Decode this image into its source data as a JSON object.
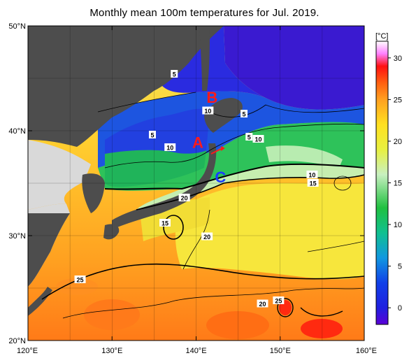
{
  "title": "Monthly mean 100m temperatures for Jul. 2019.",
  "map": {
    "lon_range": [
      120,
      160
    ],
    "lat_range": [
      20,
      50
    ],
    "lon_ticks": [
      {
        "value": 120,
        "label": "120°E"
      },
      {
        "value": 130,
        "label": "130°E"
      },
      {
        "value": 140,
        "label": "140°E"
      },
      {
        "value": 150,
        "label": "150°E"
      },
      {
        "value": 160,
        "label": "160°E"
      }
    ],
    "lat_ticks": [
      {
        "value": 50,
        "label": "50°N"
      },
      {
        "value": 40,
        "label": "40°N"
      },
      {
        "value": 30,
        "label": "30°N"
      },
      {
        "value": 20,
        "label": "20°N"
      }
    ],
    "grid_spacing_deg": 5,
    "land_color": "#4d4d4d",
    "nodata_color": "#d9d9d9",
    "point_labels": [
      {
        "id": "A",
        "text": "A",
        "lon": 140.2,
        "lat": 38.9,
        "color": "#ff1a1a"
      },
      {
        "id": "B",
        "text": "B",
        "lon": 141.9,
        "lat": 43.2,
        "color": "#ff1a1a"
      },
      {
        "id": "C",
        "text": "C",
        "lon": 142.9,
        "lat": 35.6,
        "color": "#1a3cff"
      }
    ],
    "contour_labels": [
      {
        "text": "5",
        "lon": 137.4,
        "lat": 45.4
      },
      {
        "text": "10",
        "lon": 141.4,
        "lat": 41.9
      },
      {
        "text": "5",
        "lon": 145.7,
        "lat": 41.6
      },
      {
        "text": "5",
        "lon": 134.8,
        "lat": 39.6
      },
      {
        "text": "5",
        "lon": 146.3,
        "lat": 39.4
      },
      {
        "text": "10",
        "lon": 147.4,
        "lat": 39.2
      },
      {
        "text": "10",
        "lon": 136.9,
        "lat": 38.4
      },
      {
        "text": "10",
        "lon": 153.8,
        "lat": 35.8
      },
      {
        "text": "15",
        "lon": 153.9,
        "lat": 35.0
      },
      {
        "text": "20",
        "lon": 138.6,
        "lat": 33.6
      },
      {
        "text": "15",
        "lon": 136.3,
        "lat": 31.2
      },
      {
        "text": "20",
        "lon": 141.3,
        "lat": 29.9
      },
      {
        "text": "25",
        "lon": 126.2,
        "lat": 25.8
      },
      {
        "text": "20",
        "lon": 147.9,
        "lat": 23.5
      },
      {
        "text": "25",
        "lon": 149.8,
        "lat": 23.8
      }
    ]
  },
  "colorbar": {
    "unit_label": "[°C]",
    "min": -2,
    "max": 32,
    "ticks": [
      0,
      5,
      10,
      15,
      20,
      25,
      30
    ],
    "stops": [
      {
        "value": -2,
        "color": "#5a00d6"
      },
      {
        "value": 0,
        "color": "#2020e0"
      },
      {
        "value": 3,
        "color": "#1040e8"
      },
      {
        "value": 6,
        "color": "#1098e0"
      },
      {
        "value": 9,
        "color": "#10c090"
      },
      {
        "value": 12,
        "color": "#20c040"
      },
      {
        "value": 16,
        "color": "#c8f0c0"
      },
      {
        "value": 19,
        "color": "#e8f040"
      },
      {
        "value": 22,
        "color": "#ffe020"
      },
      {
        "value": 25,
        "color": "#ffa020"
      },
      {
        "value": 27,
        "color": "#ff6010"
      },
      {
        "value": 29,
        "color": "#ff1010"
      },
      {
        "value": 30.5,
        "color": "#ff80ff"
      },
      {
        "value": 32,
        "color": "#ffffff"
      }
    ]
  }
}
